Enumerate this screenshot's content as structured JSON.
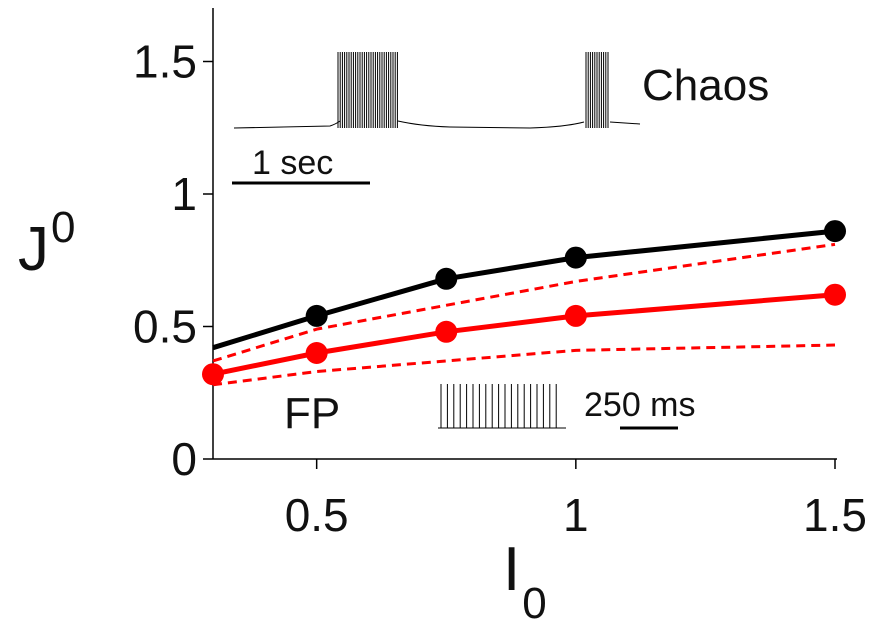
{
  "chart_data": {
    "type": "line",
    "xlabel": "I",
    "xlabel_sub": "0",
    "ylabel": "J",
    "ylabel_sub": "0",
    "xlim": [
      0.3,
      1.5
    ],
    "ylim": [
      0,
      1.6
    ],
    "x_ticks": [
      0.5,
      1,
      1.5
    ],
    "x_tick_labels": [
      "0.5",
      "1",
      "1.5"
    ],
    "y_ticks": [
      0,
      0.5,
      1,
      1.5
    ],
    "y_tick_labels": [
      "0",
      "0.5",
      "1",
      "1.5"
    ],
    "grid": false,
    "series": [
      {
        "color": "#000000",
        "style": "solid-markers",
        "x": [
          0.3,
          0.5,
          0.75,
          1.0,
          1.5
        ],
        "y": [
          0.42,
          0.54,
          0.68,
          0.76,
          0.86
        ],
        "markers": [
          false,
          true,
          true,
          true,
          true
        ]
      },
      {
        "color": "#ff0000",
        "style": "solid-markers",
        "x": [
          0.3,
          0.5,
          0.75,
          1.0,
          1.5
        ],
        "y": [
          0.32,
          0.4,
          0.48,
          0.54,
          0.62
        ],
        "markers": [
          true,
          true,
          true,
          true,
          true
        ]
      },
      {
        "color": "#ff0000",
        "style": "dashed",
        "x": [
          0.3,
          0.5,
          1.0,
          1.5
        ],
        "y": [
          0.37,
          0.49,
          0.67,
          0.81
        ]
      },
      {
        "color": "#ff0000",
        "style": "dashed",
        "x": [
          0.3,
          0.5,
          1.0,
          1.5
        ],
        "y": [
          0.28,
          0.33,
          0.41,
          0.43
        ]
      }
    ],
    "annotations": {
      "chaos_label": "Chaos",
      "fp_label": "FP",
      "scalebar_top": "1 sec",
      "scalebar_bottom": "250 ms"
    }
  }
}
